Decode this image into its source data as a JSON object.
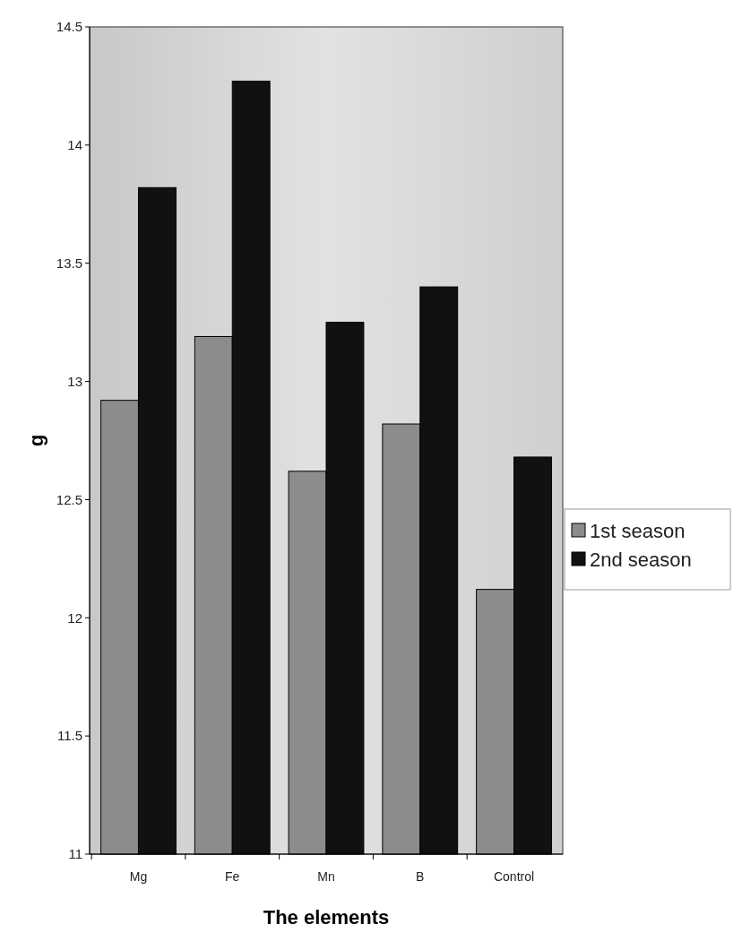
{
  "chart_data": {
    "type": "bar",
    "xlabel": "The elements",
    "ylabel": "g",
    "categories": [
      "Mg",
      "Fe",
      "Mn",
      "B",
      "Control"
    ],
    "series": [
      {
        "name": "1st season",
        "color": "#8c8c8c",
        "values": [
          12.92,
          13.19,
          12.62,
          12.82,
          12.12
        ]
      },
      {
        "name": "2nd season",
        "color": "#111111",
        "values": [
          13.82,
          14.27,
          13.25,
          13.4,
          12.68
        ]
      }
    ],
    "ylim": [
      11,
      14.5
    ],
    "yticks": [
      11,
      11.5,
      12,
      12.5,
      13,
      13.5,
      14,
      14.5
    ],
    "legend": "right"
  }
}
